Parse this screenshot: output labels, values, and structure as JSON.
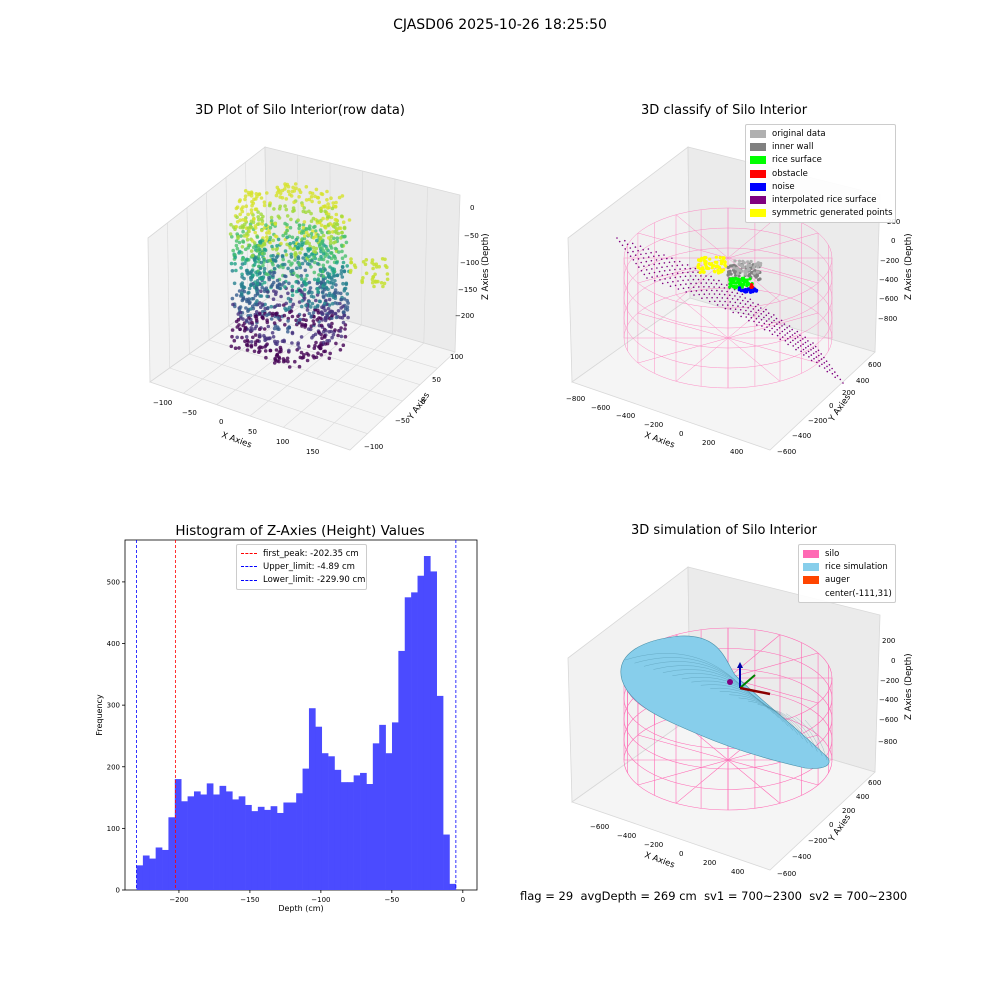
{
  "figure_title": "CJASD06 2025-10-26 18:25:50",
  "footer": {
    "flag": "flag = 29",
    "avg_depth": "avgDepth = 269 cm",
    "sv1": "sv1 = 700~2300",
    "sv2": "sv2 = 700~2300"
  },
  "colors": {
    "histogram_bar": "#4b4bff",
    "silo_wire": "#ff69b4",
    "rice": "#87ceeb",
    "auger": "#ff4500"
  },
  "chart_data": [
    {
      "type": "scatter",
      "title": "3D Plot of Silo Interior(row data)",
      "xlabel": "X Axies",
      "ylabel": "Y Axies",
      "zlabel": "Z Axies (Depth)",
      "x_ticks": [
        "−100",
        "−50",
        "0",
        "50",
        "100",
        "150"
      ],
      "y_ticks": [
        "−100",
        "−50",
        "0",
        "50",
        "100"
      ],
      "z_ticks": [
        "0",
        "−50",
        "−100",
        "−150",
        "−200"
      ],
      "colormap": "viridis",
      "description_points": "dense point cloud, about 3000 points between z −230 and 0"
    },
    {
      "type": "scatter",
      "title": "3D classify of Silo Interior",
      "xlabel": "X Axies",
      "ylabel": "Y Axies",
      "zlabel": "Z Axies (Depth)",
      "x_ticks": [
        "−800",
        "−600",
        "−400",
        "−200",
        "0",
        "200",
        "400"
      ],
      "y_ticks": [
        "600",
        "400",
        "200",
        "0",
        "−200",
        "−400",
        "−600"
      ],
      "z_ticks": [
        "200",
        "0",
        "−200",
        "−400",
        "−600",
        "−800"
      ],
      "legend": [
        {
          "label": "original data",
          "color": "#b0b0b0"
        },
        {
          "label": "inner wall",
          "color": "#808080"
        },
        {
          "label": "rice surface",
          "color": "#00ff00"
        },
        {
          "label": "obstacle",
          "color": "#ff0000"
        },
        {
          "label": "noise",
          "color": "#0000ff"
        },
        {
          "label": "interpolated rice surface",
          "color": "#800080"
        },
        {
          "label": "symmetric generated points",
          "color": "#ffff00"
        }
      ]
    },
    {
      "type": "bar",
      "title": "Histogram of Z-Axies (Height) Values",
      "xlabel": "Depth (cm)",
      "ylabel": "Frequency",
      "xlim": [
        -238,
        10
      ],
      "ylim": [
        0,
        568
      ],
      "x_ticks": [
        -200,
        -150,
        -100,
        -50,
        0
      ],
      "y_ticks": [
        0,
        100,
        200,
        300,
        400,
        500
      ],
      "bin_edges_start": -229.9,
      "bin_width": 4.5,
      "values": [
        40,
        56,
        51,
        69,
        65,
        118,
        180,
        144,
        152,
        160,
        155,
        173,
        155,
        169,
        160,
        147,
        152,
        138,
        128,
        135,
        130,
        136,
        125,
        142,
        142,
        157,
        197,
        295,
        265,
        222,
        217,
        195,
        175,
        175,
        186,
        190,
        172,
        238,
        268,
        222,
        272,
        388,
        475,
        483,
        510,
        542,
        517,
        315,
        90,
        10
      ],
      "vlines": [
        {
          "label": "first_peak: -202.35 cm",
          "x": -202.35,
          "color": "#ff0000"
        },
        {
          "label": "Upper_limit: -4.89 cm",
          "x": -4.89,
          "color": "#0000ff"
        },
        {
          "label": "Lower_limit: -229.90 cm",
          "x": -229.9,
          "color": "#0000ff"
        }
      ]
    },
    {
      "type": "area",
      "title": "3D simulation of Silo Interior",
      "xlabel": "X Axies",
      "ylabel": "Y Axies",
      "zlabel": "Z Axies (Depth)",
      "x_ticks": [
        "−600",
        "−400",
        "−200",
        "0",
        "200",
        "400"
      ],
      "y_ticks": [
        "600",
        "400",
        "200",
        "0",
        "−200",
        "−400",
        "−600"
      ],
      "z_ticks": [
        "200",
        "0",
        "−200",
        "−400",
        "−600",
        "−800"
      ],
      "legend": [
        {
          "label": "silo",
          "color": "#ff69b4"
        },
        {
          "label": "rice simulation",
          "color": "#87ceeb"
        },
        {
          "label": "auger",
          "color": "#ff4500"
        },
        {
          "label": "center(-111,31)",
          "color": ""
        }
      ]
    }
  ]
}
